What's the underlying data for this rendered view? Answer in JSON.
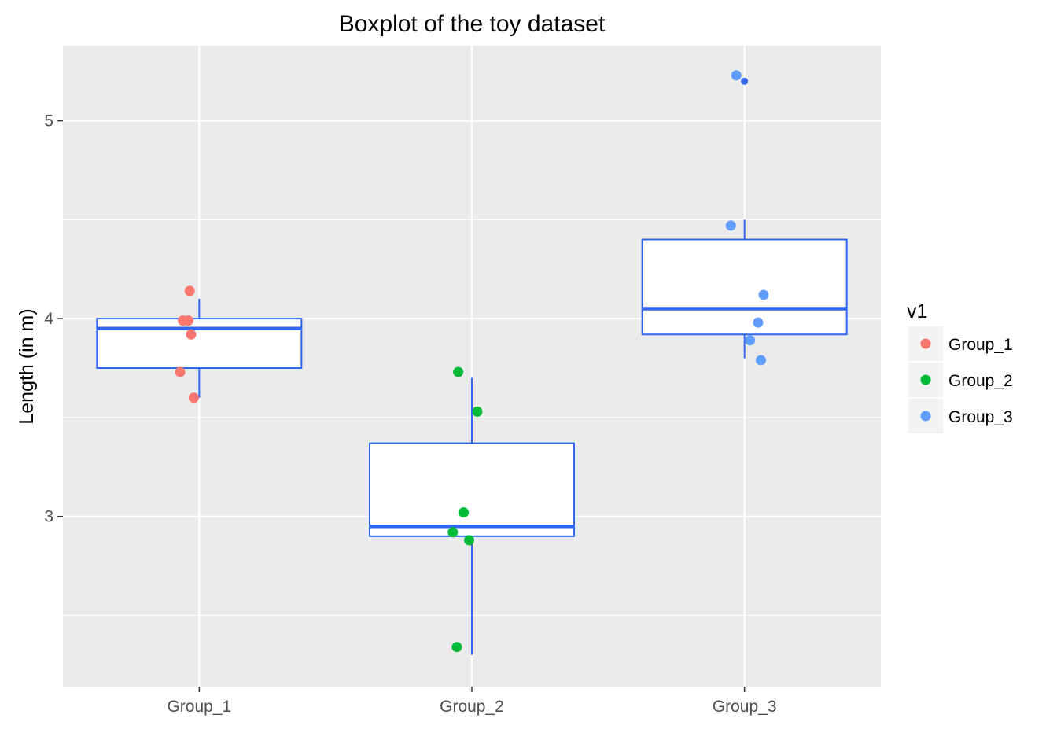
{
  "chart_data": {
    "type": "boxplot",
    "title": "Boxplot of the toy dataset",
    "xlabel": "",
    "ylabel": "Length (in m)",
    "ylim": [
      2.14,
      5.38
    ],
    "y_ticks": [
      3,
      4,
      5
    ],
    "y_tick_labels": [
      "3",
      "4",
      "5"
    ],
    "categories": [
      "Group_1",
      "Group_2",
      "Group_3"
    ],
    "grid": true,
    "box_color": "#3366ee",
    "panel_bg": "#ebebeb",
    "boxes": [
      {
        "category": "Group_1",
        "whisker_low": 3.6,
        "q1": 3.75,
        "median": 3.95,
        "q3": 4.0,
        "whisker_high": 4.1,
        "outliers": []
      },
      {
        "category": "Group_2",
        "whisker_low": 2.3,
        "q1": 2.9,
        "median": 2.95,
        "q3": 3.37,
        "whisker_high": 3.7,
        "outliers": []
      },
      {
        "category": "Group_3",
        "whisker_low": 3.8,
        "q1": 3.92,
        "median": 4.05,
        "q3": 4.4,
        "whisker_high": 4.5,
        "outliers": [
          5.2
        ]
      }
    ],
    "legend": {
      "title": "v1",
      "position": "right",
      "entries": [
        {
          "label": "Group_1",
          "color": "#f8766d"
        },
        {
          "label": "Group_2",
          "color": "#00ba38"
        },
        {
          "label": "Group_3",
          "color": "#619cff"
        }
      ]
    },
    "points": [
      {
        "category": "Group_1",
        "jitter": -0.06,
        "y": 3.99
      },
      {
        "category": "Group_1",
        "jitter": -0.04,
        "y": 3.99
      },
      {
        "category": "Group_1",
        "jitter": -0.035,
        "y": 4.14
      },
      {
        "category": "Group_1",
        "jitter": -0.03,
        "y": 3.92
      },
      {
        "category": "Group_1",
        "jitter": -0.07,
        "y": 3.73
      },
      {
        "category": "Group_1",
        "jitter": -0.02,
        "y": 3.6
      },
      {
        "category": "Group_2",
        "jitter": -0.05,
        "y": 3.73
      },
      {
        "category": "Group_2",
        "jitter": 0.02,
        "y": 3.53
      },
      {
        "category": "Group_2",
        "jitter": -0.03,
        "y": 3.02
      },
      {
        "category": "Group_2",
        "jitter": -0.07,
        "y": 2.92
      },
      {
        "category": "Group_2",
        "jitter": -0.01,
        "y": 2.88
      },
      {
        "category": "Group_2",
        "jitter": -0.055,
        "y": 2.34
      },
      {
        "category": "Group_3",
        "jitter": -0.03,
        "y": 5.23
      },
      {
        "category": "Group_3",
        "jitter": -0.05,
        "y": 4.47
      },
      {
        "category": "Group_3",
        "jitter": 0.07,
        "y": 4.12
      },
      {
        "category": "Group_3",
        "jitter": 0.05,
        "y": 3.98
      },
      {
        "category": "Group_3",
        "jitter": 0.02,
        "y": 3.89
      },
      {
        "category": "Group_3",
        "jitter": 0.06,
        "y": 3.79
      }
    ]
  }
}
